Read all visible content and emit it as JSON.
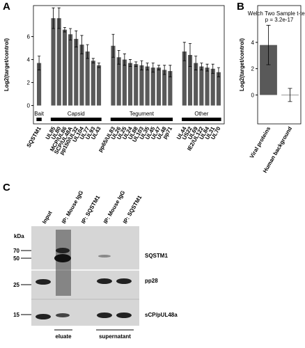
{
  "chart_data": [
    {
      "type": "bar",
      "panel": "A",
      "y_label": "Log2(target/control)",
      "ylim": [
        -1.6,
        8.7
      ],
      "yticks": [
        0,
        2,
        4,
        6
      ],
      "color": "#595959",
      "groups": [
        {
          "name": "Bait",
          "categories": [
            "SQSTM1"
          ],
          "values": [
            3.7
          ],
          "errors": [
            0.6
          ]
        },
        {
          "name": "Capsid",
          "categories": [
            "UL85",
            "UL80",
            "MCP/UL86",
            "SCP/UL48A",
            "pp150/UL32",
            "UL104",
            "UL77",
            "UL93",
            "UL43"
          ],
          "values": [
            7.6,
            7.6,
            6.6,
            6.2,
            5.8,
            5.3,
            4.7,
            3.9,
            3.5
          ],
          "errors": [
            0.9,
            0.9,
            0.2,
            0.5,
            0.7,
            0.8,
            0.6,
            0.2,
            0.2
          ]
        },
        {
          "name": "Tegument",
          "categories": [
            "pp65/UL83",
            "UL26",
            "UL25",
            "UL24",
            "UL88",
            "UL103",
            "UL35",
            "UL45",
            "UL47",
            "UL48",
            "pp71"
          ],
          "values": [
            5.2,
            4.2,
            4.0,
            3.7,
            3.6,
            3.5,
            3.4,
            3.3,
            3.3,
            3.1,
            3.0
          ],
          "errors": [
            1.0,
            0.6,
            0.5,
            0.3,
            0.2,
            0.4,
            0.3,
            0.4,
            0.2,
            0.4,
            0.5
          ]
        },
        {
          "name": "Other",
          "categories": [
            "UL44",
            "US22",
            "UL69",
            "IE2/UL122",
            "UL84",
            "UL31",
            "UL70"
          ],
          "values": [
            4.7,
            4.4,
            3.7,
            3.4,
            3.3,
            3.2,
            2.9
          ],
          "errors": [
            0.8,
            1.0,
            0.6,
            0.3,
            0.3,
            0.4,
            0.4
          ]
        }
      ]
    },
    {
      "type": "bar",
      "panel": "B",
      "y_label": "Log2(target/control)",
      "annotation": [
        "Welch Two Sample t-test,",
        "p = 3.2e-17"
      ],
      "ylim": [
        -2.2,
        6.8
      ],
      "yticks": [
        0,
        2,
        4
      ],
      "color": "#595959",
      "categories": [
        "Viral proteins",
        "Human background"
      ],
      "values": [
        3.8,
        0
      ],
      "errors": [
        1.5,
        0.5
      ]
    }
  ],
  "blot": {
    "panel": "C",
    "unit": "kDa",
    "lanes": [
      "Input",
      "IP: Mouse IgG",
      "IP: SQSTM1",
      "IP: Mouse IgG",
      "IP: SQSTM1"
    ],
    "markers": [
      "70",
      "50",
      "25",
      "15"
    ],
    "proteins": [
      "SQSTM1",
      "pp28",
      "sCP/pUL48a"
    ],
    "fractions": [
      "eluate",
      "supernatant"
    ]
  }
}
